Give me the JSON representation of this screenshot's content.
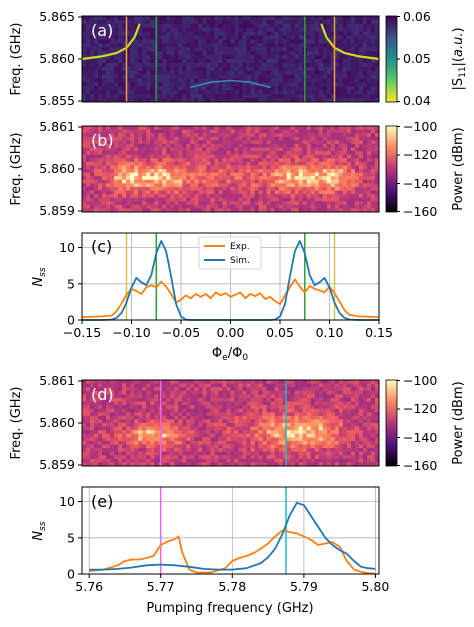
{
  "colors": {
    "exp": "#ff7f0e",
    "sim": "#1f77b4",
    "marker_yellow": "#d4c24a",
    "marker_green": "#2ca02c",
    "marker_orange": "#f0a030",
    "marker_magenta": "#ee66ee",
    "marker_cyan": "#17becf",
    "grid": "#b0b0b0"
  },
  "chart_data": [
    {
      "id": "a",
      "type": "heatmap",
      "panel_label": "(a)",
      "ylabel": "Freq. (GHz)",
      "y_ticks": [
        "5.865",
        "5.860",
        "5.855"
      ],
      "ylim": [
        5.855,
        5.865
      ],
      "xlim": [
        -0.15,
        0.15
      ],
      "colorbar": {
        "label": "|S₁₁|(a.u.)",
        "label_main": "|S",
        "label_sub": "11",
        "label_mid": "|(",
        "label_italic": "a.u.",
        "label_end": ")",
        "ticks": [
          "0.06",
          "0.05",
          "0.04"
        ],
        "range": [
          0.04,
          0.06
        ],
        "colormap": "viridis"
      },
      "marker_lines": [
        {
          "x": -0.105,
          "color": "marker_orange"
        },
        {
          "x": -0.075,
          "color": "marker_green"
        },
        {
          "x": 0.075,
          "color": "marker_green"
        },
        {
          "x": 0.105,
          "color": "marker_orange"
        }
      ]
    },
    {
      "id": "b",
      "type": "heatmap",
      "panel_label": "(b)",
      "ylabel": "Freq. (GHz)",
      "y_ticks": [
        "5.861",
        "5.860",
        "5.859"
      ],
      "ylim": [
        5.859,
        5.861
      ],
      "xlim": [
        -0.15,
        0.15
      ],
      "colorbar": {
        "label": "Power (dBm)",
        "ticks": [
          "−100",
          "−120",
          "−140",
          "−160"
        ],
        "range": [
          -160,
          -100
        ],
        "colormap": "magma"
      }
    },
    {
      "id": "c",
      "type": "line",
      "panel_label": "(c)",
      "ylabel": "N",
      "ylabel_sub": "ss",
      "xlabel": "Φe/Φ0",
      "xlabel_parts": [
        "Φ",
        "e",
        "/Φ",
        "0"
      ],
      "xlim": [
        -0.15,
        0.15
      ],
      "ylim": [
        0,
        12
      ],
      "x_ticks": [
        -0.15,
        -0.1,
        -0.05,
        0.0,
        0.05,
        0.1,
        0.15
      ],
      "x_tick_labels": [
        "−0.15",
        "−0.10",
        "−0.05",
        "0.00",
        "0.05",
        "0.10",
        "0.15"
      ],
      "y_ticks": [
        0,
        5,
        10
      ],
      "y_tick_labels": [
        "0",
        "5",
        "10"
      ],
      "grid": true,
      "legend_position": "top-center",
      "marker_lines": [
        {
          "x": -0.105,
          "color": "marker_yellow"
        },
        {
          "x": -0.075,
          "color": "marker_green"
        },
        {
          "x": 0.075,
          "color": "marker_green"
        },
        {
          "x": 0.105,
          "color": "marker_yellow"
        }
      ],
      "series": [
        {
          "name": "Exp.",
          "color": "exp",
          "x": [
            -0.15,
            -0.13,
            -0.12,
            -0.115,
            -0.11,
            -0.105,
            -0.1,
            -0.095,
            -0.09,
            -0.085,
            -0.08,
            -0.075,
            -0.07,
            -0.065,
            -0.06,
            -0.055,
            -0.05,
            -0.045,
            -0.04,
            -0.035,
            -0.03,
            -0.025,
            -0.02,
            -0.015,
            -0.01,
            -0.005,
            0.0,
            0.005,
            0.01,
            0.015,
            0.02,
            0.025,
            0.03,
            0.035,
            0.04,
            0.045,
            0.05,
            0.055,
            0.06,
            0.065,
            0.07,
            0.075,
            0.08,
            0.085,
            0.09,
            0.095,
            0.1,
            0.105,
            0.11,
            0.115,
            0.12,
            0.13,
            0.15
          ],
          "y": [
            0.4,
            0.5,
            0.6,
            1.2,
            2.3,
            3.5,
            4.3,
            4.0,
            3.6,
            4.5,
            4.8,
            4.5,
            5.3,
            4.6,
            3.6,
            2.4,
            2.8,
            3.4,
            3.0,
            3.6,
            3.2,
            3.6,
            3.0,
            3.8,
            3.4,
            3.7,
            3.2,
            3.5,
            3.8,
            3.0,
            3.6,
            3.3,
            3.7,
            2.9,
            3.2,
            2.6,
            2.2,
            3.4,
            4.5,
            5.6,
            4.6,
            3.8,
            4.7,
            4.3,
            4.1,
            3.8,
            4.6,
            3.7,
            2.6,
            1.4,
            0.7,
            0.5,
            0.4
          ]
        },
        {
          "name": "Sim.",
          "color": "sim",
          "x": [
            -0.15,
            -0.13,
            -0.12,
            -0.115,
            -0.11,
            -0.105,
            -0.1,
            -0.095,
            -0.09,
            -0.085,
            -0.08,
            -0.075,
            -0.07,
            -0.065,
            -0.06,
            -0.055,
            -0.05,
            -0.045,
            -0.04,
            0.04,
            0.045,
            0.05,
            0.055,
            0.06,
            0.065,
            0.07,
            0.075,
            0.08,
            0.085,
            0.09,
            0.095,
            0.1,
            0.105,
            0.11,
            0.115,
            0.12,
            0.13,
            0.15
          ],
          "y": [
            0.0,
            0.0,
            0.05,
            0.3,
            1.0,
            2.4,
            4.5,
            5.8,
            5.2,
            4.8,
            6.2,
            9.2,
            10.9,
            9.5,
            6.0,
            2.2,
            0.5,
            0.05,
            0.0,
            0.0,
            0.05,
            0.5,
            2.2,
            6.0,
            9.5,
            10.9,
            9.2,
            6.2,
            4.8,
            5.2,
            5.8,
            4.5,
            2.4,
            1.0,
            0.3,
            0.05,
            0.0,
            0.0
          ]
        }
      ]
    },
    {
      "id": "d",
      "type": "heatmap",
      "panel_label": "(d)",
      "ylabel": "Freq. (GHz)",
      "y_ticks": [
        "5.861",
        "5.860",
        "5.859"
      ],
      "ylim": [
        5.859,
        5.861
      ],
      "xlim": [
        5.759,
        5.8005
      ],
      "colorbar": {
        "label": "Power (dBm)",
        "ticks": [
          "−100",
          "−120",
          "−140",
          "−160"
        ],
        "range": [
          -160,
          -100
        ],
        "colormap": "magma"
      },
      "marker_lines": [
        {
          "x": 5.77,
          "color": "marker_magenta"
        },
        {
          "x": 5.7875,
          "color": "marker_cyan"
        }
      ]
    },
    {
      "id": "e",
      "type": "line",
      "panel_label": "(e)",
      "ylabel": "N",
      "ylabel_sub": "ss",
      "xlabel": "Pumping frequency (GHz)",
      "xlim": [
        5.759,
        5.8005
      ],
      "ylim": [
        0,
        12
      ],
      "x_ticks": [
        5.76,
        5.77,
        5.78,
        5.79,
        5.8
      ],
      "x_tick_labels": [
        "5.76",
        "5.77",
        "5.78",
        "5.79",
        "5.80"
      ],
      "y_ticks": [
        0,
        5,
        10
      ],
      "y_tick_labels": [
        "0",
        "5",
        "10"
      ],
      "grid": true,
      "marker_lines": [
        {
          "x": 5.77,
          "color": "marker_magenta"
        },
        {
          "x": 5.7875,
          "color": "marker_cyan"
        }
      ],
      "series": [
        {
          "name": "Exp.",
          "color": "exp",
          "x": [
            5.76,
            5.762,
            5.764,
            5.765,
            5.766,
            5.767,
            5.768,
            5.769,
            5.77,
            5.771,
            5.772,
            5.7725,
            5.773,
            5.774,
            5.775,
            5.777,
            5.779,
            5.78,
            5.781,
            5.782,
            5.783,
            5.784,
            5.785,
            5.786,
            5.787,
            5.788,
            5.789,
            5.79,
            5.791,
            5.792,
            5.793,
            5.794,
            5.795,
            5.796,
            5.797,
            5.798,
            5.799,
            5.8
          ],
          "y": [
            0.4,
            0.6,
            1.2,
            1.8,
            2.0,
            2.0,
            2.2,
            2.5,
            4.0,
            4.5,
            4.8,
            5.2,
            3.0,
            0.6,
            0.2,
            0.2,
            0.8,
            1.8,
            2.2,
            2.5,
            2.9,
            3.5,
            4.2,
            5.2,
            6.0,
            5.8,
            5.6,
            5.2,
            4.7,
            4.0,
            4.2,
            4.4,
            3.8,
            1.8,
            0.6,
            0.3,
            0.1,
            0.05
          ]
        },
        {
          "name": "Sim.",
          "color": "sim",
          "x": [
            5.76,
            5.762,
            5.764,
            5.766,
            5.768,
            5.77,
            5.772,
            5.774,
            5.776,
            5.778,
            5.78,
            5.782,
            5.784,
            5.785,
            5.786,
            5.787,
            5.788,
            5.789,
            5.79,
            5.791,
            5.792,
            5.793,
            5.794,
            5.795,
            5.796,
            5.797,
            5.798,
            5.799,
            5.8
          ],
          "y": [
            0.6,
            0.6,
            0.7,
            0.9,
            1.2,
            1.3,
            1.2,
            1.0,
            0.7,
            0.6,
            0.6,
            0.8,
            1.5,
            2.3,
            3.5,
            5.5,
            8.0,
            9.8,
            9.5,
            8.0,
            6.5,
            5.0,
            4.0,
            3.3,
            2.8,
            1.8,
            1.0,
            0.8,
            0.7
          ]
        }
      ]
    }
  ]
}
